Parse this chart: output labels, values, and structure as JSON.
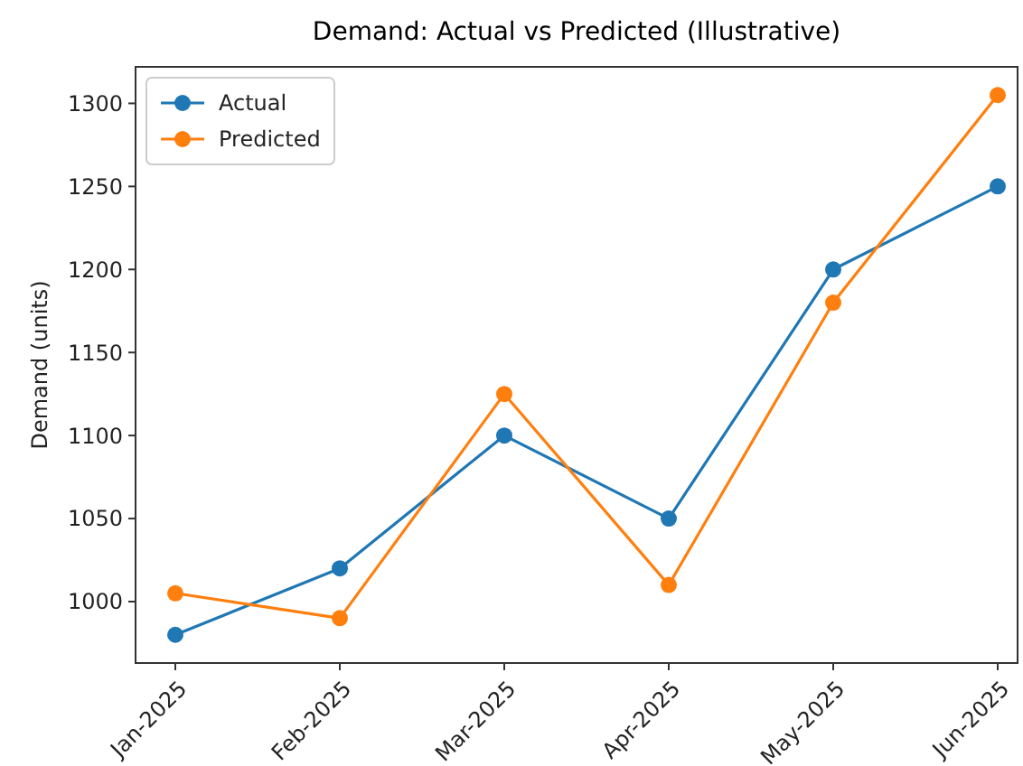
{
  "chart_data": {
    "type": "line",
    "title": "Demand: Actual vs Predicted (Illustrative)",
    "ylabel": "Demand (units)",
    "categories": [
      "Jan-2025",
      "Feb-2025",
      "Mar-2025",
      "Apr-2025",
      "May-2025",
      "Jun-2025"
    ],
    "series": [
      {
        "name": "Actual",
        "color": "#1f77b4",
        "values": [
          980,
          1020,
          1100,
          1050,
          1200,
          1250
        ]
      },
      {
        "name": "Predicted",
        "color": "#ff7f0e",
        "values": [
          1005,
          990,
          1125,
          1010,
          1180,
          1305
        ]
      }
    ],
    "ylim": [
      963,
      1322
    ],
    "yticks": [
      1000,
      1050,
      1100,
      1150,
      1200,
      1250,
      1300
    ],
    "marker": "circle",
    "legend": "top left",
    "grid": false
  }
}
